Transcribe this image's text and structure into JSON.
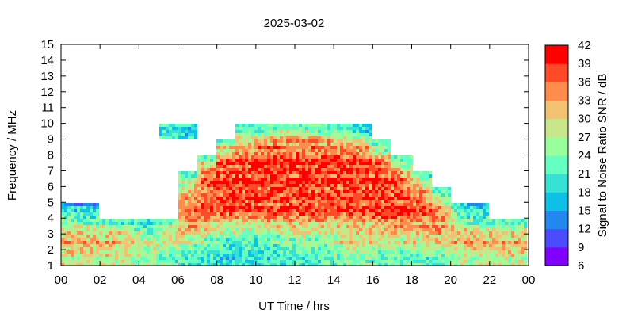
{
  "chart_data": {
    "type": "heatmap",
    "title": "2025-03-02",
    "xlabel": "UT Time / hrs",
    "ylabel": "Frequency / MHz",
    "colorbar_label": "Signal to Noise Ratio SNR / dB",
    "xlim": [
      0,
      24
    ],
    "ylim": [
      1,
      15
    ],
    "x_tick_labels": [
      "00",
      "02",
      "04",
      "06",
      "08",
      "10",
      "12",
      "14",
      "16",
      "18",
      "20",
      "22",
      "00"
    ],
    "y_tick_labels": [
      "1",
      "2",
      "3",
      "4",
      "5",
      "6",
      "7",
      "8",
      "9",
      "10",
      "11",
      "12",
      "13",
      "14",
      "15"
    ],
    "colorbar_ticks": [
      "6",
      "9",
      "12",
      "15",
      "18",
      "21",
      "24",
      "27",
      "30",
      "33",
      "36",
      "39",
      "42"
    ],
    "clim": [
      6,
      42
    ],
    "color_bands": [
      "#7f00ff",
      "#4c4cff",
      "#2288f0",
      "#0dc0e6",
      "#35e2d4",
      "#66ffc2",
      "#98ff9c",
      "#c8e68a",
      "#f2c272",
      "#ff8c4c",
      "#ff4a28",
      "#ff0000"
    ],
    "x_hours": [
      0,
      1,
      2,
      3,
      4,
      5,
      6,
      7,
      8,
      9,
      10,
      11,
      12,
      13,
      14,
      15,
      16,
      17,
      18,
      19,
      20,
      21,
      22,
      23
    ],
    "freq_bins_mhz": [
      "1-2",
      "2-3",
      "3-4",
      "4-5",
      "5-6",
      "6-7",
      "7-8",
      "8-9",
      "9-10",
      "10-11",
      "11-12",
      "12-13",
      "13-14",
      "14-15"
    ],
    "snr_db": [
      [
        27,
        27,
        27,
        26,
        24,
        22,
        20,
        19,
        18,
        18,
        18,
        19,
        20,
        21,
        22,
        24,
        22,
        21,
        21,
        22,
        25,
        26,
        27,
        27
      ],
      [
        33,
        33,
        32,
        31,
        28,
        27,
        27,
        25,
        22,
        21,
        21,
        24,
        24,
        24,
        28,
        30,
        28,
        28,
        29,
        30,
        32,
        33,
        33,
        33
      ],
      [
        27,
        26,
        25,
        24,
        18,
        27,
        33,
        30,
        28,
        28,
        30,
        30,
        30,
        30,
        30,
        30,
        32,
        32,
        32,
        34,
        28,
        25,
        24,
        24
      ],
      [
        18,
        16,
        null,
        null,
        null,
        null,
        36,
        37,
        38,
        38,
        38,
        38,
        38,
        38,
        38,
        38,
        38,
        38,
        37,
        34,
        20,
        17,
        null,
        null
      ],
      [
        null,
        null,
        null,
        null,
        null,
        null,
        32,
        38,
        38,
        38,
        38,
        38,
        38,
        38,
        38,
        38,
        38,
        38,
        36,
        24,
        null,
        null,
        null,
        null
      ],
      [
        null,
        null,
        null,
        null,
        null,
        null,
        24,
        37,
        38,
        38,
        38,
        38,
        38,
        38,
        38,
        38,
        38,
        36,
        24,
        null,
        null,
        null,
        null,
        null
      ],
      [
        null,
        null,
        null,
        null,
        null,
        null,
        null,
        28,
        37,
        38,
        38,
        38,
        38,
        38,
        38,
        38,
        35,
        24,
        null,
        null,
        null,
        null,
        null,
        null
      ],
      [
        null,
        null,
        null,
        null,
        null,
        null,
        null,
        null,
        30,
        34,
        36,
        36,
        36,
        36,
        35,
        32,
        24,
        null,
        null,
        null,
        null,
        null,
        null,
        null
      ],
      [
        null,
        null,
        null,
        null,
        null,
        20,
        18,
        null,
        null,
        22,
        24,
        26,
        26,
        24,
        22,
        18,
        null,
        null,
        null,
        null,
        null,
        null,
        null,
        null
      ],
      [
        null,
        null,
        null,
        null,
        null,
        null,
        null,
        null,
        null,
        null,
        null,
        null,
        null,
        null,
        null,
        null,
        null,
        null,
        null,
        null,
        null,
        null,
        null,
        null
      ],
      [
        null,
        null,
        null,
        null,
        null,
        null,
        null,
        null,
        null,
        null,
        null,
        null,
        null,
        null,
        null,
        null,
        null,
        null,
        null,
        null,
        null,
        null,
        null,
        null
      ],
      [
        null,
        null,
        null,
        null,
        null,
        null,
        null,
        null,
        null,
        null,
        null,
        null,
        null,
        null,
        null,
        null,
        null,
        null,
        null,
        null,
        null,
        null,
        null,
        null
      ],
      [
        null,
        null,
        null,
        null,
        null,
        null,
        null,
        null,
        null,
        null,
        null,
        null,
        null,
        null,
        null,
        null,
        null,
        null,
        null,
        null,
        null,
        null,
        null,
        null
      ],
      [
        null,
        null,
        null,
        null,
        null,
        null,
        null,
        null,
        null,
        null,
        null,
        null,
        null,
        null,
        null,
        null,
        null,
        null,
        null,
        null,
        null,
        null,
        null,
        null
      ]
    ]
  }
}
